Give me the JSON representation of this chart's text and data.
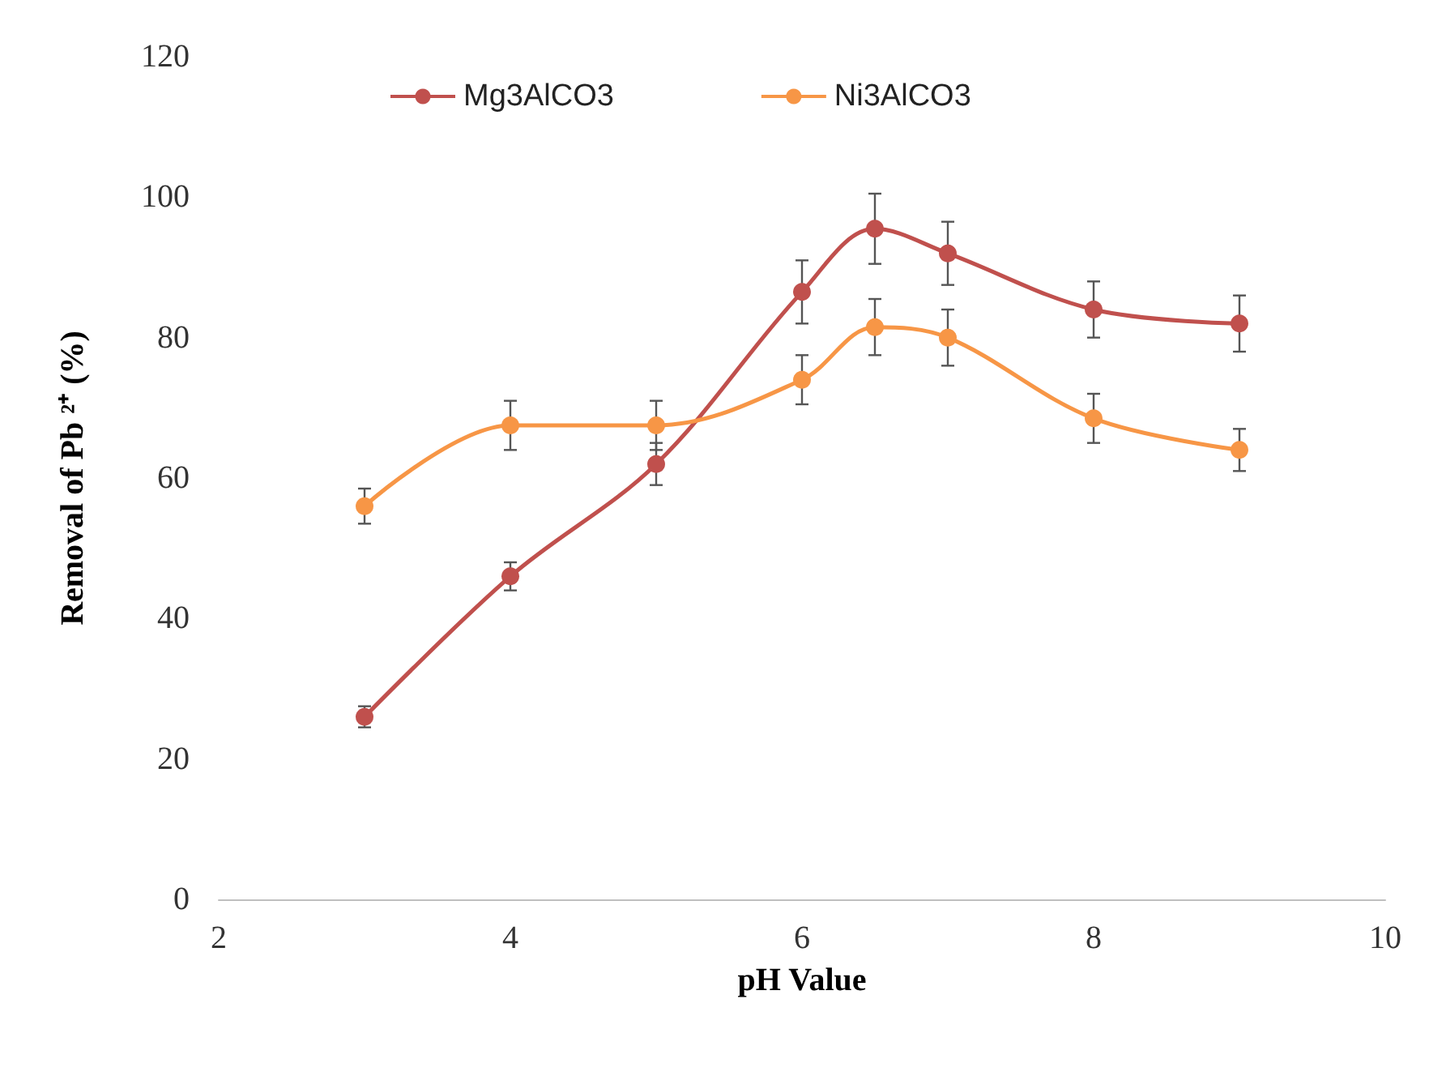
{
  "chart_data": {
    "type": "line",
    "xlabel": "pH Value",
    "ylabel": "Removal of Pb ²⁺ (%)",
    "x": [
      3,
      4,
      5,
      6,
      6.5,
      7,
      8,
      9
    ],
    "series": [
      {
        "name": "Mg3AlCO3",
        "color": "#c0504d",
        "values": [
          26,
          46,
          62,
          86.5,
          95.5,
          92,
          84,
          82
        ],
        "errors": [
          1.5,
          2,
          3,
          4.5,
          5,
          4.5,
          4,
          4
        ]
      },
      {
        "name": "Ni3AlCO3",
        "color": "#f79646",
        "values": [
          56,
          67.5,
          67.5,
          74,
          81.5,
          80,
          68.5,
          64
        ],
        "errors": [
          2.5,
          3.5,
          3.5,
          3.5,
          4,
          4,
          3.5,
          3
        ]
      }
    ],
    "xlim": [
      2,
      10
    ],
    "xticks": [
      2,
      4,
      6,
      8,
      10
    ],
    "ylim": [
      0,
      120
    ],
    "yticks": [
      0,
      20,
      40,
      60,
      80,
      100,
      120
    ],
    "grid": false,
    "legend": "top",
    "marker": "circle",
    "line_style": "solid"
  }
}
